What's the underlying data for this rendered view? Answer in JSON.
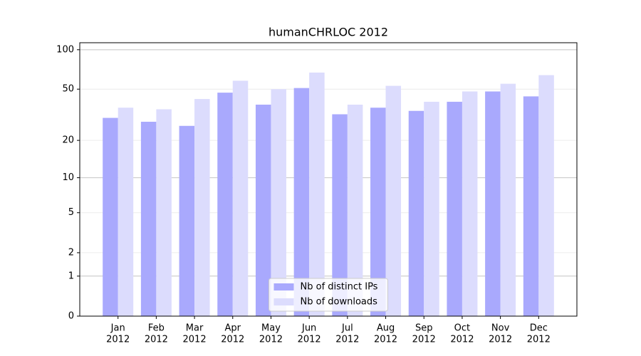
{
  "chart_data": {
    "type": "bar",
    "title": "humanCHRLOC 2012",
    "y_scale": "log1p",
    "categories": [
      [
        "Jan",
        "2012"
      ],
      [
        "Feb",
        "2012"
      ],
      [
        "Mar",
        "2012"
      ],
      [
        "Apr",
        "2012"
      ],
      [
        "May",
        "2012"
      ],
      [
        "Jun",
        "2012"
      ],
      [
        "Jul",
        "2012"
      ],
      [
        "Aug",
        "2012"
      ],
      [
        "Sep",
        "2012"
      ],
      [
        "Oct",
        "2012"
      ],
      [
        "Nov",
        "2012"
      ],
      [
        "Dec",
        "2012"
      ]
    ],
    "series": [
      {
        "name": "Nb of distinct IPs",
        "color": "#a9a9fd",
        "values": [
          30,
          28,
          26,
          47,
          38,
          51,
          32,
          36,
          34,
          40,
          48,
          44
        ]
      },
      {
        "name": "Nb of downloads",
        "color": "#dcdcfd",
        "values": [
          36,
          35,
          42,
          58,
          50,
          67,
          38,
          53,
          40,
          48,
          55,
          64
        ]
      }
    ],
    "ylim": [
      0,
      113
    ],
    "yticks": [
      0,
      1,
      2,
      5,
      10,
      20,
      50,
      100
    ],
    "grid": true,
    "legend": "lower center"
  }
}
